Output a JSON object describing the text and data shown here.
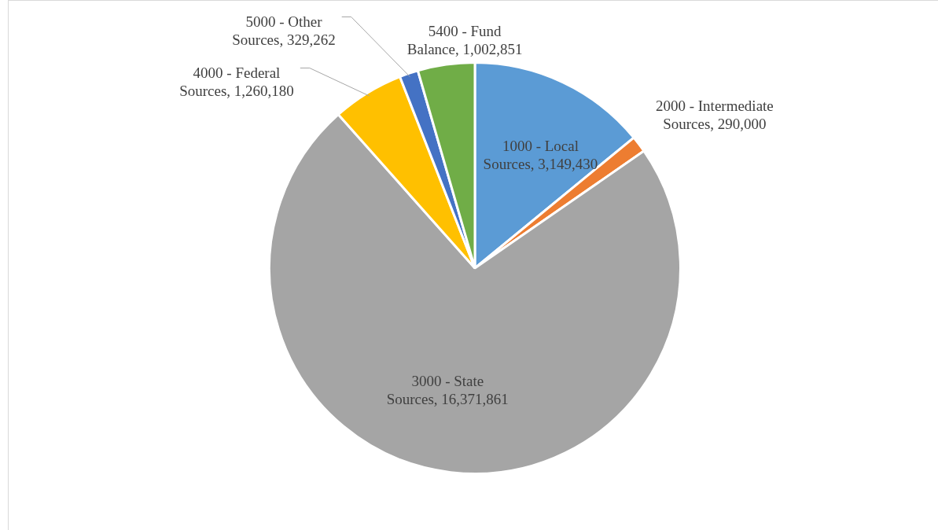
{
  "chart_data": {
    "type": "pie",
    "categories": [
      "1000 - Local Sources",
      "2000 - Intermediate Sources",
      "3000 - State Sources",
      "4000 - Federal Sources",
      "5000 - Other Sources",
      "5400 - Fund Balance"
    ],
    "values": [
      3149430,
      290000,
      16371861,
      1260180,
      329262,
      1002851
    ],
    "value_labels": [
      "3,149,430",
      "290,000",
      "16,371,861",
      "1,260,180",
      "329,262",
      "1,002,851"
    ],
    "colors": [
      "#5b9bd5",
      "#ed7d31",
      "#a5a5a5",
      "#ffc000",
      "#4472c4",
      "#70ad47"
    ],
    "legend": false
  }
}
